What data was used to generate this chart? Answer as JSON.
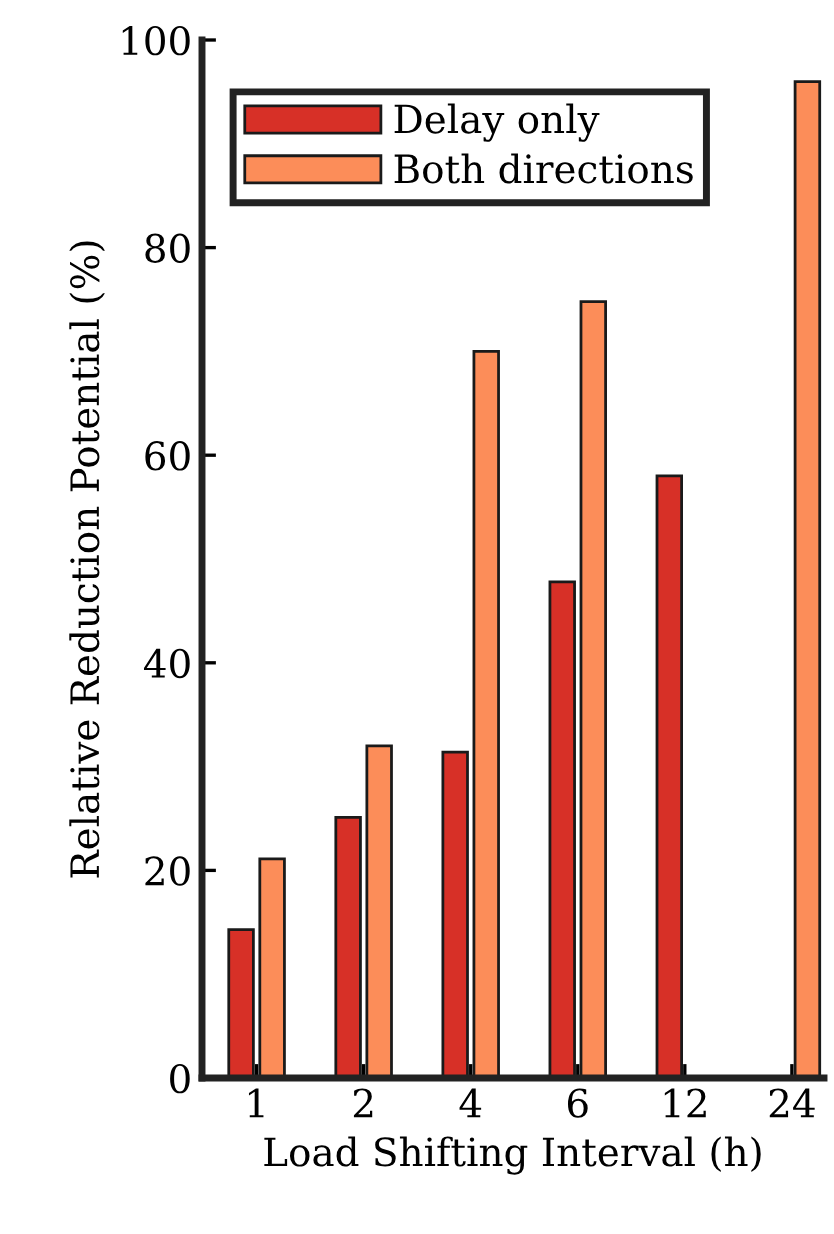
{
  "chart_data": {
    "type": "bar",
    "xlabel": "Load Shifting Interval (h)",
    "ylabel": "Relative Reduction Potential (%)",
    "categories": [
      "1",
      "2",
      "4",
      "6",
      "12",
      "24"
    ],
    "series": [
      {
        "name": "Delay only",
        "color": "#d73027",
        "values": [
          14.3,
          25.1,
          31.4,
          47.8,
          58.0,
          null
        ]
      },
      {
        "name": "Both directions",
        "color": "#fc8d59",
        "values": [
          21.1,
          32.0,
          70.0,
          74.8,
          null,
          96.0
        ]
      }
    ],
    "ylim": [
      0,
      100
    ],
    "yticks": [
      0,
      20,
      40,
      60,
      80,
      100
    ],
    "grid": false,
    "legend": "top left"
  }
}
